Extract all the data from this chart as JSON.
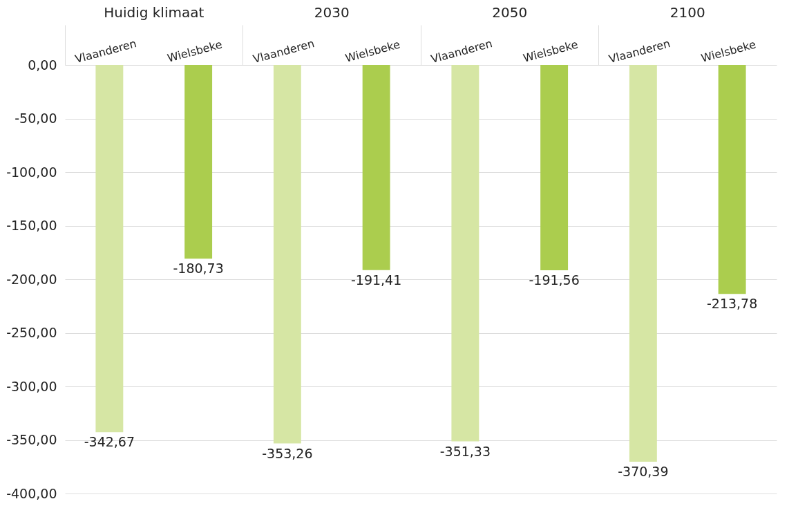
{
  "chart_data": {
    "type": "bar",
    "categories": [
      "Huidig klimaat",
      "2030",
      "2050",
      "2100"
    ],
    "series": [
      {
        "name": "Vlaanderen",
        "color": "#d6e6a4",
        "values": [
          -342.67,
          -353.26,
          -351.33,
          -370.39
        ],
        "value_labels": [
          "-342,67",
          "-353,26",
          "-351,33",
          "-370,39"
        ]
      },
      {
        "name": "Wielsbeke",
        "color": "#abcd4e",
        "values": [
          -180.73,
          -191.41,
          -191.56,
          -213.78
        ],
        "value_labels": [
          "-180,73",
          "-191,41",
          "-191,56",
          "-213,78"
        ]
      }
    ],
    "ylim": [
      -400,
      0
    ],
    "yticks": [
      {
        "value": 0,
        "label": "0,00"
      },
      {
        "value": -50,
        "label": "-50,00"
      },
      {
        "value": -100,
        "label": "-100,00"
      },
      {
        "value": -150,
        "label": "-150,00"
      },
      {
        "value": -200,
        "label": "-200,00"
      },
      {
        "value": -250,
        "label": "-250,00"
      },
      {
        "value": -300,
        "label": "-300,00"
      },
      {
        "value": -350,
        "label": "-350,00"
      },
      {
        "value": -400,
        "label": "-400,00"
      }
    ],
    "grid": "y",
    "legend": false
  }
}
